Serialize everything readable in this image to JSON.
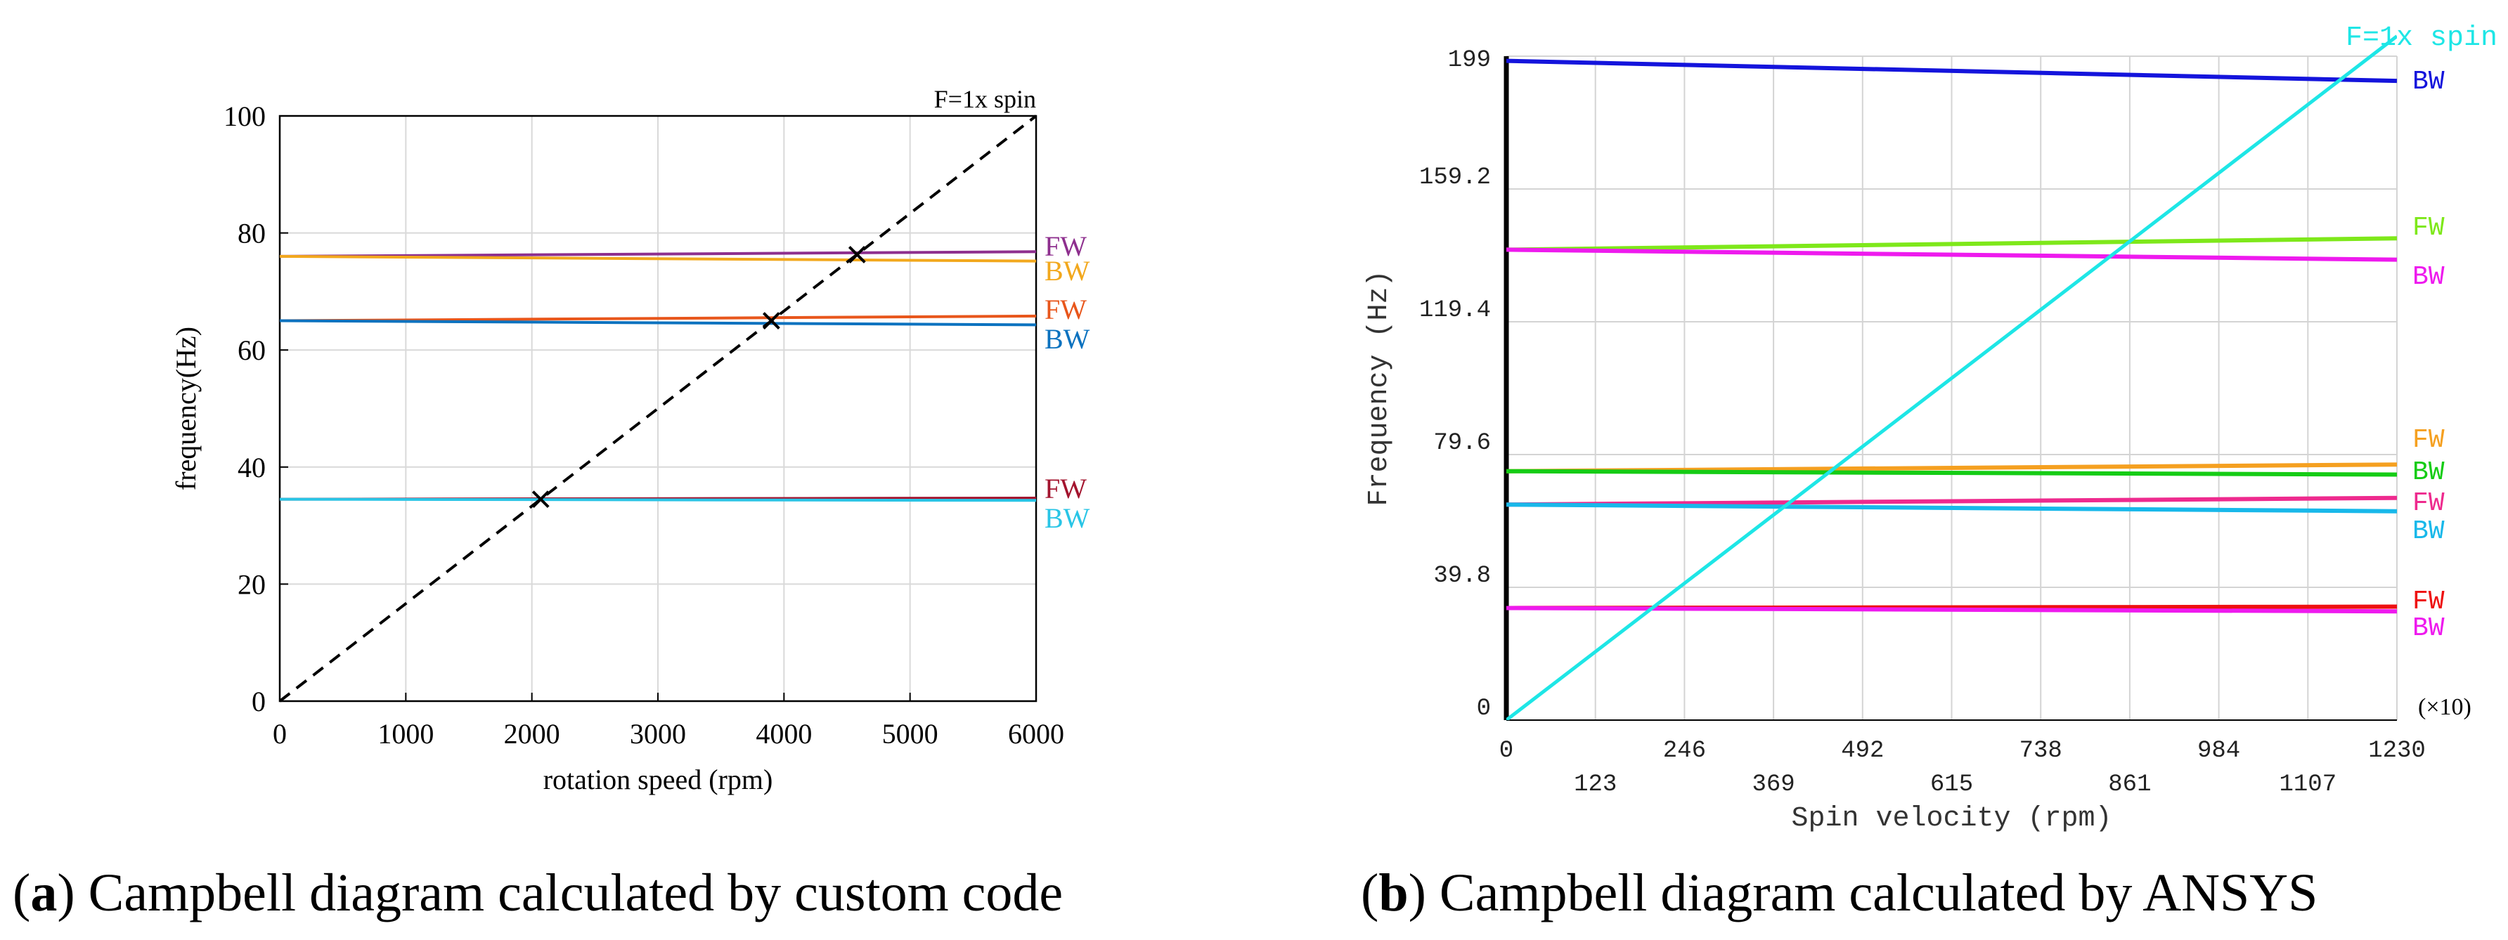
{
  "captions": {
    "a_label": "a",
    "a_text": " Campbell diagram calculated by custom code",
    "b_label": "b",
    "b_text": " Campbell diagram calculated by ANSYS"
  },
  "chart_data": [
    {
      "type": "line",
      "title": "",
      "xlabel": "rotation speed (rpm)",
      "ylabel": "frequency(Hz)",
      "xlim": [
        0,
        6000
      ],
      "ylim": [
        0,
        100
      ],
      "xticks": [
        0,
        1000,
        2000,
        3000,
        4000,
        5000,
        6000
      ],
      "yticks": [
        0,
        20,
        40,
        60,
        80,
        100
      ],
      "grid": true,
      "legend": "right of plot, inline labels",
      "series": [
        {
          "name": "FW",
          "color": "#8e2f8e",
          "x": [
            0,
            6000
          ],
          "y": [
            76.0,
            76.8
          ]
        },
        {
          "name": "BW",
          "color": "#f2a81d",
          "x": [
            0,
            6000
          ],
          "y": [
            76.0,
            75.2
          ]
        },
        {
          "name": "FW",
          "color": "#e8561b",
          "x": [
            0,
            6000
          ],
          "y": [
            65.0,
            65.8
          ]
        },
        {
          "name": "BW",
          "color": "#0b72bf",
          "x": [
            0,
            6000
          ],
          "y": [
            65.0,
            64.3
          ]
        },
        {
          "name": "FW",
          "color": "#a3142e",
          "x": [
            0,
            6000
          ],
          "y": [
            34.5,
            34.7
          ]
        },
        {
          "name": "BW",
          "color": "#29c5e6",
          "x": [
            0,
            6000
          ],
          "y": [
            34.5,
            34.3
          ]
        },
        {
          "name": "F=1x  spin",
          "color": "#000000",
          "dashed": true,
          "x": [
            0,
            6000
          ],
          "y": [
            0,
            100
          ]
        }
      ],
      "markers": [
        {
          "x": 2070,
          "y": 34.5
        },
        {
          "x": 3900,
          "y": 65.0
        },
        {
          "x": 4580,
          "y": 76.3
        }
      ]
    },
    {
      "type": "line",
      "title": "",
      "xlabel": "Spin velocity (rpm)",
      "ylabel": "Frequency (Hz)",
      "x_multiplier": "(×10)",
      "xlim": [
        0,
        1230
      ],
      "ylim": [
        0,
        199
      ],
      "xticks_upper": [
        0,
        246,
        492,
        738,
        984,
        1230
      ],
      "xticks_lower": [
        123,
        369,
        615,
        861,
        1107
      ],
      "yticks": [
        0,
        39.8,
        79.6,
        119.4,
        159.2,
        199
      ],
      "grid": true,
      "legend": "right of plot, inline labels",
      "series": [
        {
          "name": "BW",
          "color": "#1414dc",
          "x": [
            0,
            1230
          ],
          "y": [
            197.6,
            191.6
          ]
        },
        {
          "name": "FW",
          "color": "#7ee81a",
          "x": [
            0,
            1230
          ],
          "y": [
            141.0,
            144.4
          ]
        },
        {
          "name": "BW",
          "color": "#ee1aee",
          "x": [
            0,
            1230
          ],
          "y": [
            141.0,
            138.0
          ]
        },
        {
          "name": "FW",
          "color": "#f5a020",
          "x": [
            0,
            1230
          ],
          "y": [
            74.6,
            76.6
          ]
        },
        {
          "name": "BW",
          "color": "#15cc15",
          "x": [
            0,
            1230
          ],
          "y": [
            74.6,
            73.6
          ]
        },
        {
          "name": "FW",
          "color": "#ee2a8e",
          "x": [
            0,
            1230
          ],
          "y": [
            64.6,
            66.6
          ]
        },
        {
          "name": "BW",
          "color": "#18b8ea",
          "x": [
            0,
            1230
          ],
          "y": [
            64.6,
            62.6
          ]
        },
        {
          "name": "FW",
          "color": "#ee1010",
          "x": [
            0,
            1230
          ],
          "y": [
            33.6,
            34.0
          ]
        },
        {
          "name": "BW",
          "color": "#ee1aee",
          "x": [
            0,
            1230
          ],
          "y": [
            33.6,
            32.6
          ]
        },
        {
          "name": "F=1x  spin",
          "color": "#1ee6e6",
          "x": [
            0,
            1230
          ],
          "y": [
            0,
            205
          ]
        }
      ]
    }
  ]
}
